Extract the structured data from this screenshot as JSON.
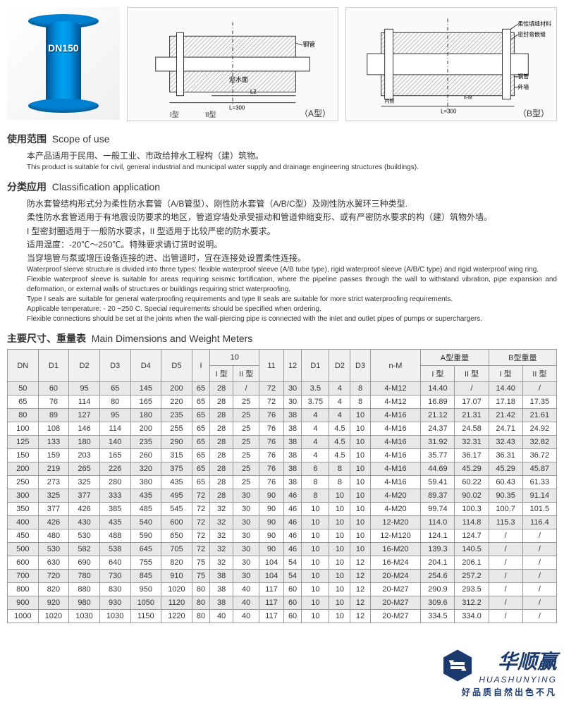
{
  "product_label": "DN150",
  "diagram_a": {
    "labels": {
      "gangguan": "钢管",
      "yingshiumian": "迎水面",
      "type1": "I型",
      "type2": "II型",
      "typeA": "（A型）"
    }
  },
  "diagram_b": {
    "labels": {
      "rouxing": "柔性填缝材料",
      "mifeng": "密封膏嵌缝",
      "gangguan": "钢管",
      "waiqiang": "外墙",
      "typeB": "（B型）"
    }
  },
  "scope": {
    "title_cn": "使用范围",
    "title_en": "Scope of use",
    "text_cn": "本产品适用于民用、一般工业、市政给排水工程构（建）筑物。",
    "text_en": "This product is suitable for civil, general industrial and municipal water supply and drainage engineering structures (buildings)."
  },
  "classification": {
    "title_cn": "分类应用",
    "title_en": "Classification application",
    "text_cn1": "防水套管结构形式分为柔性防水套管（A/B管型）、刚性防水套管（A/B/C型）及刚性防水翼环三种类型.",
    "text_cn2": "柔性防水套管适用于有地震设防要求的地区，管道穿墙处承受振动和管道伸缩变形、或有严密防水要求的构（建）筑物外墙。",
    "text_cn3": "I 型密封圈适用于一般防水要求，II 型适用于比较严密的防水要求。",
    "text_cn4": "适用温度：-20℃～250℃。特殊要求请订货时说明。",
    "text_cn5": "当穿墙管与泵或增压设备连接的进、出管道时，宜在连接处设置柔性连接。",
    "text_en1": "Waterproof sleeve structure is divided into three types: flexible waterproof sleeve (A/B tube type), rigid waterproof sleeve (A/B/C type) and rigid waterproof wing ring.",
    "text_en2": "Flexible waterproof sleeve is suitable for areas requiring seismic fortification, where the pipeline passes through the wall to withstand vibration, pipe expansion and deformation, or external walls of structures or buildings requiring strict waterproofing.",
    "text_en3": "Type I seals are suitable for general waterproofing requirements and type II seals are suitable for more strict waterproofing requirements.",
    "text_en4": "Applicable temperature: - 20 ~250 C. Special requirements should be specified when ordering.",
    "text_en5": "Flexible connections should be set at the joints when the wall-piercing pipe is connected with the inlet and outlet pipes of pumps or superchargers."
  },
  "table": {
    "title_cn": "主要尺寸、重量表",
    "title_en": "Main Dimensions and Weight Meters",
    "headers": {
      "dn": "DN",
      "d1": "D1",
      "d2": "D2",
      "d3": "D3",
      "d4": "D4",
      "d5": "D5",
      "i": "I",
      "g10": "10",
      "t1": "I 型",
      "t2": "II 型",
      "g11": "11",
      "g12": "12",
      "d1b": "D1",
      "d2b": "D2",
      "d3b": "D3",
      "nm": "n-M",
      "wa": "A型重量",
      "wb": "B型重量"
    },
    "rows": [
      [
        "50",
        "60",
        "95",
        "65",
        "145",
        "200",
        "65",
        "28",
        "/",
        "72",
        "30",
        "3.5",
        "4",
        "8",
        "4-M12",
        "14.40",
        "/",
        "14.40",
        "/"
      ],
      [
        "65",
        "76",
        "114",
        "80",
        "165",
        "220",
        "65",
        "28",
        "25",
        "72",
        "30",
        "3.75",
        "4",
        "8",
        "4-M12",
        "16.89",
        "17.07",
        "17.18",
        "17.35"
      ],
      [
        "80",
        "89",
        "127",
        "95",
        "180",
        "235",
        "65",
        "28",
        "25",
        "76",
        "38",
        "4",
        "4",
        "10",
        "4-M16",
        "21.12",
        "21.31",
        "21.42",
        "21.61"
      ],
      [
        "100",
        "108",
        "146",
        "114",
        "200",
        "255",
        "65",
        "28",
        "25",
        "76",
        "38",
        "4",
        "4.5",
        "10",
        "4-M16",
        "24.37",
        "24.58",
        "24.71",
        "24.92"
      ],
      [
        "125",
        "133",
        "180",
        "140",
        "235",
        "290",
        "65",
        "28",
        "25",
        "76",
        "38",
        "4",
        "4.5",
        "10",
        "4-M16",
        "31.92",
        "32.31",
        "32.43",
        "32.82"
      ],
      [
        "150",
        "159",
        "203",
        "165",
        "260",
        "315",
        "65",
        "28",
        "25",
        "76",
        "38",
        "4",
        "4.5",
        "10",
        "4-M16",
        "35.77",
        "36.17",
        "36.31",
        "36.72"
      ],
      [
        "200",
        "219",
        "265",
        "226",
        "320",
        "375",
        "65",
        "28",
        "25",
        "76",
        "38",
        "6",
        "8",
        "10",
        "4-M16",
        "44.69",
        "45.29",
        "45.29",
        "45.87"
      ],
      [
        "250",
        "273",
        "325",
        "280",
        "380",
        "435",
        "65",
        "28",
        "25",
        "76",
        "38",
        "8",
        "8",
        "10",
        "4-M16",
        "59.41",
        "60.22",
        "60.43",
        "61.33"
      ],
      [
        "300",
        "325",
        "377",
        "333",
        "435",
        "495",
        "72",
        "28",
        "30",
        "90",
        "46",
        "8",
        "10",
        "10",
        "4-M20",
        "89.37",
        "90.02",
        "90.35",
        "91.14"
      ],
      [
        "350",
        "377",
        "426",
        "385",
        "485",
        "545",
        "72",
        "32",
        "30",
        "90",
        "46",
        "10",
        "10",
        "10",
        "4-M20",
        "99.74",
        "100.3",
        "100.7",
        "101.5"
      ],
      [
        "400",
        "426",
        "430",
        "435",
        "540",
        "600",
        "72",
        "32",
        "30",
        "90",
        "46",
        "10",
        "10",
        "10",
        "12-M20",
        "114.0",
        "114.8",
        "115.3",
        "116.4"
      ],
      [
        "450",
        "480",
        "530",
        "488",
        "590",
        "650",
        "72",
        "32",
        "30",
        "90",
        "46",
        "10",
        "10",
        "10",
        "12-M120",
        "124.1",
        "124.7",
        "/",
        "/"
      ],
      [
        "500",
        "530",
        "582",
        "538",
        "645",
        "705",
        "72",
        "32",
        "30",
        "90",
        "46",
        "10",
        "10",
        "10",
        "16-M20",
        "139.3",
        "140.5",
        "/",
        "/"
      ],
      [
        "600",
        "630",
        "690",
        "640",
        "755",
        "820",
        "75",
        "32",
        "30",
        "104",
        "54",
        "10",
        "10",
        "12",
        "16-M24",
        "204.1",
        "206.1",
        "/",
        "/"
      ],
      [
        "700",
        "720",
        "780",
        "730",
        "845",
        "910",
        "75",
        "38",
        "30",
        "104",
        "54",
        "10",
        "10",
        "12",
        "20-M24",
        "254.6",
        "257.2",
        "/",
        "/"
      ],
      [
        "800",
        "820",
        "880",
        "830",
        "950",
        "1020",
        "80",
        "38",
        "40",
        "117",
        "60",
        "10",
        "10",
        "12",
        "20-M27",
        "290.9",
        "293.5",
        "/",
        "/"
      ],
      [
        "900",
        "920",
        "980",
        "930",
        "1050",
        "1120",
        "80",
        "38",
        "40",
        "117",
        "60",
        "10",
        "10",
        "12",
        "20-M27",
        "309.6",
        "312.2",
        "/",
        "/"
      ],
      [
        "1000",
        "1020",
        "1030",
        "1030",
        "1150",
        "1220",
        "80",
        "40",
        "40",
        "117",
        "60",
        "10",
        "10",
        "12",
        "20-M27",
        "334.5",
        "334.0",
        "/",
        "/"
      ]
    ]
  },
  "watermark": {
    "brand_cn": "华顺赢",
    "brand_en": "HUASHUNYING",
    "slogan": "好品质自然出色不凡"
  }
}
